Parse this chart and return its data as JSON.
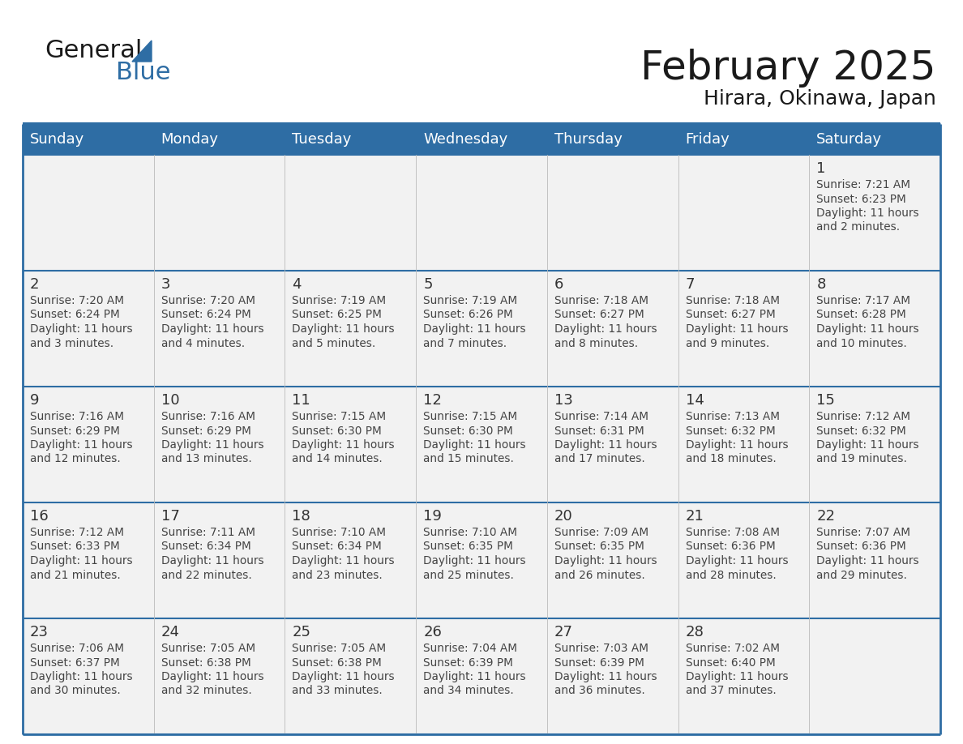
{
  "title": "February 2025",
  "subtitle": "Hirara, Okinawa, Japan",
  "days_of_week": [
    "Sunday",
    "Monday",
    "Tuesday",
    "Wednesday",
    "Thursday",
    "Friday",
    "Saturday"
  ],
  "header_bg": "#2E6DA4",
  "header_text": "#FFFFFF",
  "cell_bg_light": "#F2F2F2",
  "separator_color": "#2E6DA4",
  "text_color": "#444444",
  "day_num_color": "#333333",
  "title_color": "#1a1a1a",
  "calendar_data": [
    [
      null,
      null,
      null,
      null,
      null,
      null,
      {
        "day": 1,
        "sunrise": "7:21 AM",
        "sunset": "6:23 PM",
        "daylight_main": "Daylight: 11 hours",
        "daylight_sub": "and 2 minutes."
      }
    ],
    [
      {
        "day": 2,
        "sunrise": "7:20 AM",
        "sunset": "6:24 PM",
        "daylight_main": "Daylight: 11 hours",
        "daylight_sub": "and 3 minutes."
      },
      {
        "day": 3,
        "sunrise": "7:20 AM",
        "sunset": "6:24 PM",
        "daylight_main": "Daylight: 11 hours",
        "daylight_sub": "and 4 minutes."
      },
      {
        "day": 4,
        "sunrise": "7:19 AM",
        "sunset": "6:25 PM",
        "daylight_main": "Daylight: 11 hours",
        "daylight_sub": "and 5 minutes."
      },
      {
        "day": 5,
        "sunrise": "7:19 AM",
        "sunset": "6:26 PM",
        "daylight_main": "Daylight: 11 hours",
        "daylight_sub": "and 7 minutes."
      },
      {
        "day": 6,
        "sunrise": "7:18 AM",
        "sunset": "6:27 PM",
        "daylight_main": "Daylight: 11 hours",
        "daylight_sub": "and 8 minutes."
      },
      {
        "day": 7,
        "sunrise": "7:18 AM",
        "sunset": "6:27 PM",
        "daylight_main": "Daylight: 11 hours",
        "daylight_sub": "and 9 minutes."
      },
      {
        "day": 8,
        "sunrise": "7:17 AM",
        "sunset": "6:28 PM",
        "daylight_main": "Daylight: 11 hours",
        "daylight_sub": "and 10 minutes."
      }
    ],
    [
      {
        "day": 9,
        "sunrise": "7:16 AM",
        "sunset": "6:29 PM",
        "daylight_main": "Daylight: 11 hours",
        "daylight_sub": "and 12 minutes."
      },
      {
        "day": 10,
        "sunrise": "7:16 AM",
        "sunset": "6:29 PM",
        "daylight_main": "Daylight: 11 hours",
        "daylight_sub": "and 13 minutes."
      },
      {
        "day": 11,
        "sunrise": "7:15 AM",
        "sunset": "6:30 PM",
        "daylight_main": "Daylight: 11 hours",
        "daylight_sub": "and 14 minutes."
      },
      {
        "day": 12,
        "sunrise": "7:15 AM",
        "sunset": "6:30 PM",
        "daylight_main": "Daylight: 11 hours",
        "daylight_sub": "and 15 minutes."
      },
      {
        "day": 13,
        "sunrise": "7:14 AM",
        "sunset": "6:31 PM",
        "daylight_main": "Daylight: 11 hours",
        "daylight_sub": "and 17 minutes."
      },
      {
        "day": 14,
        "sunrise": "7:13 AM",
        "sunset": "6:32 PM",
        "daylight_main": "Daylight: 11 hours",
        "daylight_sub": "and 18 minutes."
      },
      {
        "day": 15,
        "sunrise": "7:12 AM",
        "sunset": "6:32 PM",
        "daylight_main": "Daylight: 11 hours",
        "daylight_sub": "and 19 minutes."
      }
    ],
    [
      {
        "day": 16,
        "sunrise": "7:12 AM",
        "sunset": "6:33 PM",
        "daylight_main": "Daylight: 11 hours",
        "daylight_sub": "and 21 minutes."
      },
      {
        "day": 17,
        "sunrise": "7:11 AM",
        "sunset": "6:34 PM",
        "daylight_main": "Daylight: 11 hours",
        "daylight_sub": "and 22 minutes."
      },
      {
        "day": 18,
        "sunrise": "7:10 AM",
        "sunset": "6:34 PM",
        "daylight_main": "Daylight: 11 hours",
        "daylight_sub": "and 23 minutes."
      },
      {
        "day": 19,
        "sunrise": "7:10 AM",
        "sunset": "6:35 PM",
        "daylight_main": "Daylight: 11 hours",
        "daylight_sub": "and 25 minutes."
      },
      {
        "day": 20,
        "sunrise": "7:09 AM",
        "sunset": "6:35 PM",
        "daylight_main": "Daylight: 11 hours",
        "daylight_sub": "and 26 minutes."
      },
      {
        "day": 21,
        "sunrise": "7:08 AM",
        "sunset": "6:36 PM",
        "daylight_main": "Daylight: 11 hours",
        "daylight_sub": "and 28 minutes."
      },
      {
        "day": 22,
        "sunrise": "7:07 AM",
        "sunset": "6:36 PM",
        "daylight_main": "Daylight: 11 hours",
        "daylight_sub": "and 29 minutes."
      }
    ],
    [
      {
        "day": 23,
        "sunrise": "7:06 AM",
        "sunset": "6:37 PM",
        "daylight_main": "Daylight: 11 hours",
        "daylight_sub": "and 30 minutes."
      },
      {
        "day": 24,
        "sunrise": "7:05 AM",
        "sunset": "6:38 PM",
        "daylight_main": "Daylight: 11 hours",
        "daylight_sub": "and 32 minutes."
      },
      {
        "day": 25,
        "sunrise": "7:05 AM",
        "sunset": "6:38 PM",
        "daylight_main": "Daylight: 11 hours",
        "daylight_sub": "and 33 minutes."
      },
      {
        "day": 26,
        "sunrise": "7:04 AM",
        "sunset": "6:39 PM",
        "daylight_main": "Daylight: 11 hours",
        "daylight_sub": "and 34 minutes."
      },
      {
        "day": 27,
        "sunrise": "7:03 AM",
        "sunset": "6:39 PM",
        "daylight_main": "Daylight: 11 hours",
        "daylight_sub": "and 36 minutes."
      },
      {
        "day": 28,
        "sunrise": "7:02 AM",
        "sunset": "6:40 PM",
        "daylight_main": "Daylight: 11 hours",
        "daylight_sub": "and 37 minutes."
      },
      null
    ]
  ]
}
